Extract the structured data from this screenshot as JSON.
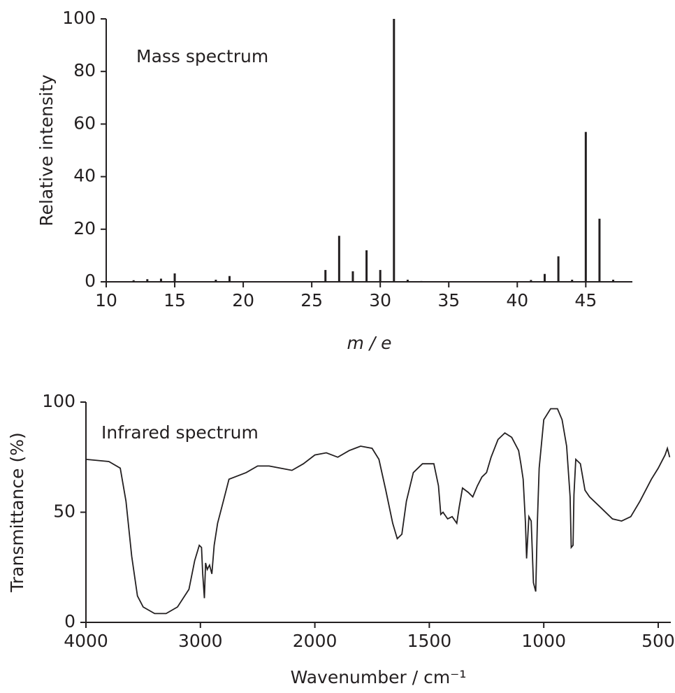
{
  "chart_data": [
    {
      "type": "bar",
      "annotation": "Mass spectrum",
      "xlabel": "m / e",
      "ylabel": "Relative intensity",
      "x": [
        12,
        13,
        14,
        15,
        18,
        19,
        26,
        27,
        28,
        29,
        30,
        31,
        32,
        33,
        41,
        42,
        43,
        44,
        45,
        46,
        47
      ],
      "values": [
        0.6,
        1,
        1.2,
        3.2,
        0.8,
        2.2,
        4.5,
        17.5,
        4,
        12,
        4.5,
        100,
        0.8,
        0.3,
        0.7,
        3,
        9.7,
        0.8,
        57,
        24,
        0.8
      ],
      "color": "#231f20",
      "xlim": [
        10,
        48.4
      ],
      "xticks": [
        10,
        15,
        20,
        25,
        30,
        35,
        40,
        45
      ],
      "ylim": [
        0,
        100
      ],
      "yticks": [
        0,
        20,
        40,
        60,
        80,
        100
      ]
    },
    {
      "type": "line",
      "annotation": "Infrared spectrum",
      "xlabel": "Wavenumber / cm⁻¹",
      "ylabel": "Transmittance (%)",
      "x": [
        4000,
        3800,
        3700,
        3650,
        3600,
        3550,
        3500,
        3400,
        3300,
        3200,
        3100,
        3050,
        3010,
        2990,
        2980,
        2965,
        2955,
        2940,
        2920,
        2900,
        2880,
        2850,
        2800,
        2750,
        2600,
        2500,
        2400,
        2300,
        2200,
        2100,
        2000,
        1950,
        1900,
        1850,
        1800,
        1750,
        1720,
        1690,
        1660,
        1640,
        1620,
        1600,
        1570,
        1530,
        1480,
        1460,
        1450,
        1440,
        1420,
        1400,
        1380,
        1370,
        1355,
        1330,
        1310,
        1290,
        1270,
        1250,
        1230,
        1200,
        1170,
        1140,
        1110,
        1100,
        1090,
        1080,
        1075,
        1065,
        1055,
        1045,
        1035,
        1028,
        1020,
        1000,
        970,
        940,
        920,
        900,
        885,
        880,
        872,
        868,
        860,
        840,
        820,
        800,
        750,
        700,
        660,
        620,
        580,
        530,
        500,
        470,
        460,
        450
      ],
      "values": [
        74,
        73,
        70,
        55,
        30,
        12,
        7,
        4,
        4,
        7,
        15,
        28,
        35,
        34,
        22,
        11,
        27,
        24,
        26,
        22,
        35,
        45,
        55,
        65,
        68,
        71,
        71,
        70,
        69,
        72,
        76,
        77,
        75,
        78,
        80,
        79,
        74,
        60,
        45,
        38,
        40,
        55,
        68,
        72,
        72,
        62,
        49,
        50,
        47,
        48,
        45,
        52,
        61,
        59,
        57,
        62,
        66,
        68,
        75,
        83,
        86,
        84,
        78,
        72,
        65,
        45,
        29,
        48,
        46,
        18,
        14,
        45,
        70,
        92,
        97,
        97,
        92,
        80,
        57,
        34,
        35,
        58,
        74,
        72,
        60,
        57,
        52,
        47,
        46,
        48,
        55,
        65,
        70,
        76,
        79,
        75
      ],
      "color": "#231f20",
      "xlim": [
        4000,
        445
      ],
      "xticks": [
        4000,
        3000,
        2000,
        1500,
        1000,
        500
      ],
      "xscale_break": 2000,
      "xscale_ratio": 2,
      "ylim": [
        0,
        100
      ],
      "yticks": [
        0,
        50,
        100
      ]
    }
  ]
}
